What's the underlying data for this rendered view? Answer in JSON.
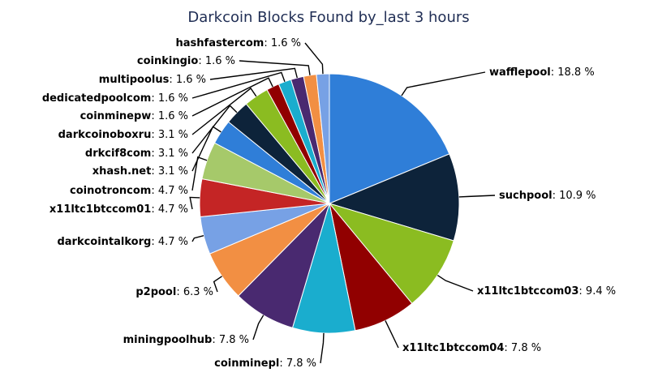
{
  "chart_data": {
    "type": "pie",
    "title": "Darkcoin Blocks Found by_last 3 hours",
    "unit": "%",
    "slices": [
      {
        "name": "wafflepool",
        "value": 18.8,
        "color": "#2f7ed8"
      },
      {
        "name": "suchpool",
        "value": 10.9,
        "color": "#0d233a"
      },
      {
        "name": "x11ltc1btccom03",
        "value": 9.4,
        "color": "#8bbc21"
      },
      {
        "name": "x11ltc1btccom04",
        "value": 7.8,
        "color": "#910000"
      },
      {
        "name": "coinminepl",
        "value": 7.8,
        "color": "#1aadce"
      },
      {
        "name": "miningpoolhub",
        "value": 7.8,
        "color": "#492970"
      },
      {
        "name": "p2pool",
        "value": 6.3,
        "color": "#f28f43"
      },
      {
        "name": "darkcointalkorg",
        "value": 4.7,
        "color": "#77a1e5"
      },
      {
        "name": "x11ltc1btccom01",
        "value": 4.7,
        "color": "#c42525"
      },
      {
        "name": "coinotroncom",
        "value": 4.7,
        "color": "#a6c96a"
      },
      {
        "name": "xhash.net",
        "value": 3.1,
        "color": "#2f7ed8"
      },
      {
        "name": "drkcif8com",
        "value": 3.1,
        "color": "#0d233a"
      },
      {
        "name": "darkcoinoboxru",
        "value": 3.1,
        "color": "#8bbc21"
      },
      {
        "name": "coinminepw",
        "value": 1.6,
        "color": "#910000"
      },
      {
        "name": "dedicatedpoolcom",
        "value": 1.6,
        "color": "#1aadce"
      },
      {
        "name": "multipoolus",
        "value": 1.6,
        "color": "#492970"
      },
      {
        "name": "coinkingio",
        "value": 1.6,
        "color": "#f28f43"
      },
      {
        "name": "hashfastercom",
        "value": 1.6,
        "color": "#77a1e5"
      }
    ]
  }
}
